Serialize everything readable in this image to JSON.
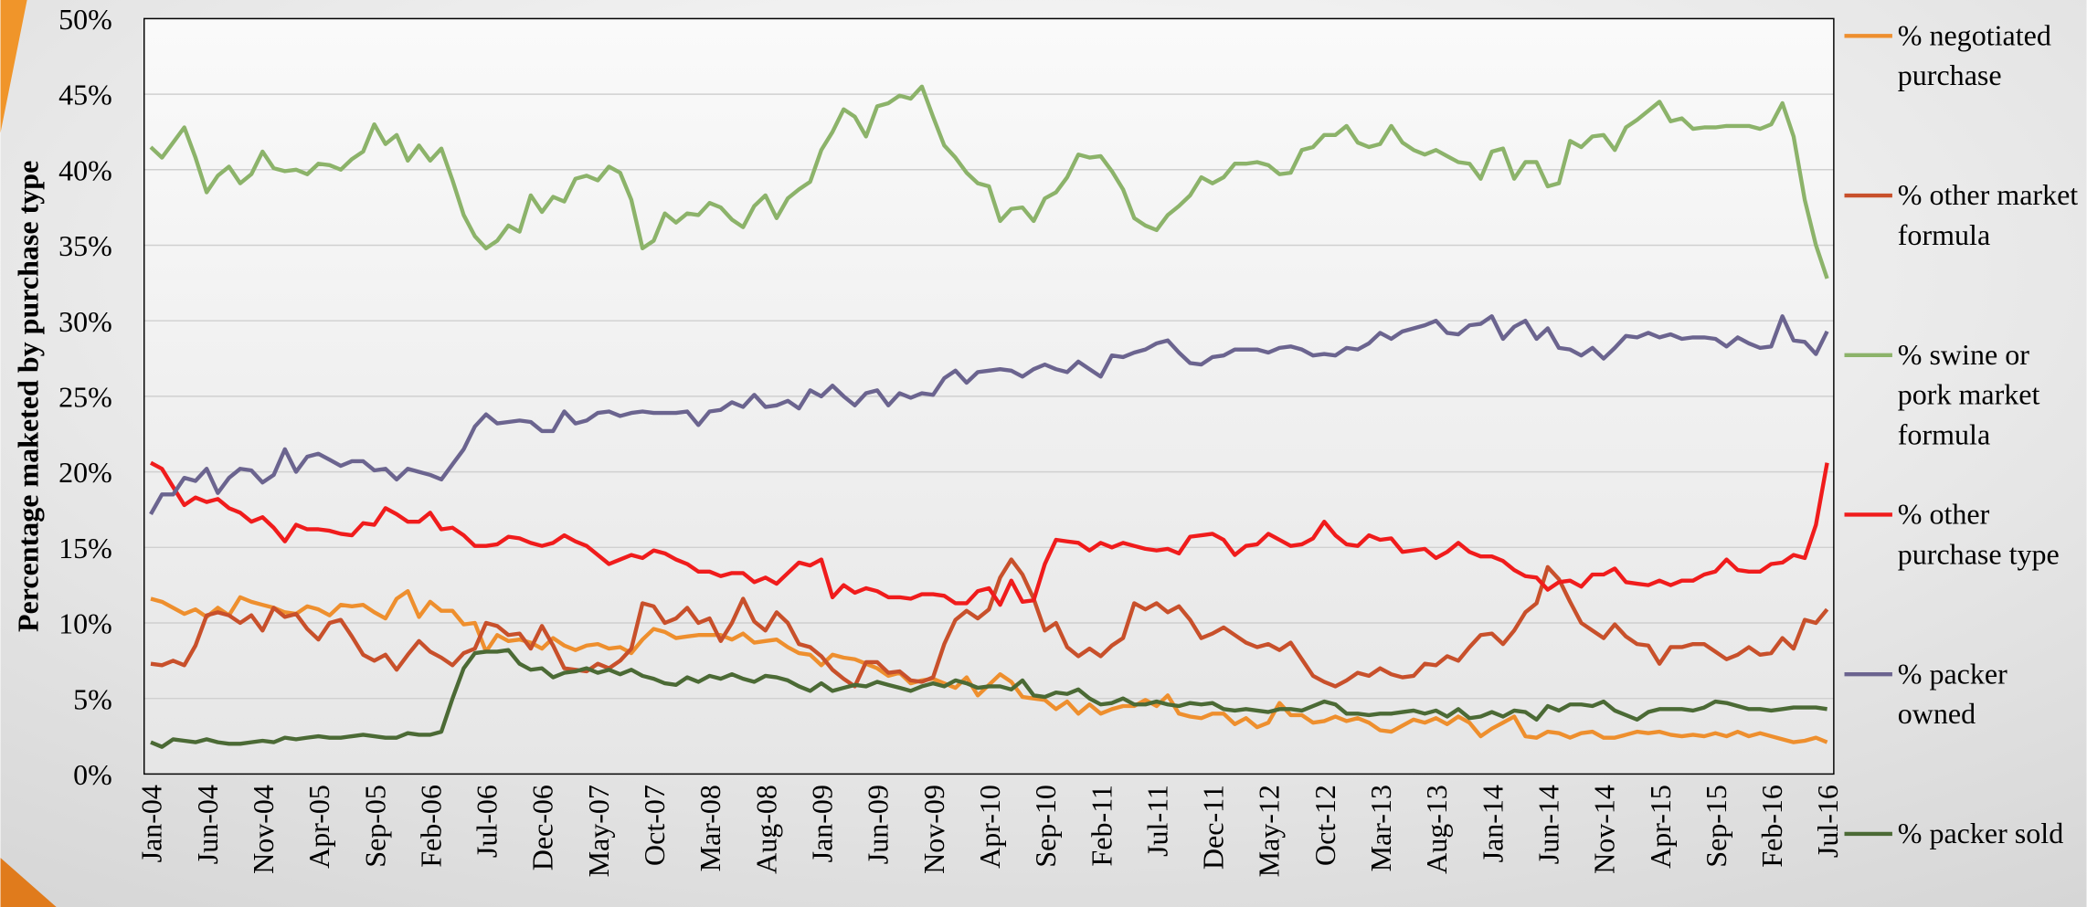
{
  "chart_data": {
    "type": "line",
    "y_label": "Percentage maketed by purchase type",
    "categories": [
      "Jan-04",
      null,
      null,
      null,
      null,
      "Jun-04",
      null,
      null,
      null,
      null,
      "Nov-04",
      null,
      null,
      null,
      null,
      "Apr-05",
      null,
      null,
      null,
      null,
      "Sep-05",
      null,
      null,
      null,
      null,
      "Feb-06",
      null,
      null,
      null,
      null,
      "Jul-06",
      null,
      null,
      null,
      null,
      "Dec-06",
      null,
      null,
      null,
      null,
      "May-07",
      null,
      null,
      null,
      null,
      "Oct-07",
      null,
      null,
      null,
      null,
      "Mar-08",
      null,
      null,
      null,
      null,
      "Aug-08",
      null,
      null,
      null,
      null,
      "Jan-09",
      null,
      null,
      null,
      null,
      "Jun-09",
      null,
      null,
      null,
      null,
      "Nov-09",
      null,
      null,
      null,
      null,
      "Apr-10",
      null,
      null,
      null,
      null,
      "Sep-10",
      null,
      null,
      null,
      null,
      "Feb-11",
      null,
      null,
      null,
      null,
      "Jul-11",
      null,
      null,
      null,
      null,
      "Dec-11",
      null,
      null,
      null,
      null,
      "May-12",
      null,
      null,
      null,
      null,
      "Oct-12",
      null,
      null,
      null,
      null,
      "Mar-13",
      null,
      null,
      null,
      null,
      "Aug-13",
      null,
      null,
      null,
      null,
      "Jan-14",
      null,
      null,
      null,
      null,
      "Jun-14",
      null,
      null,
      null,
      null,
      "Nov-14",
      null,
      null,
      null,
      null,
      "Apr-15",
      null,
      null,
      null,
      null,
      "Sep-15",
      null,
      null,
      null,
      null,
      "Feb-16",
      null,
      null,
      null,
      null,
      "Jul-16"
    ],
    "ylim": [
      0,
      50
    ],
    "yticks": [
      {
        "value": 0,
        "label": "0%"
      },
      {
        "value": 5,
        "label": "5%"
      },
      {
        "value": 10,
        "label": "10%"
      },
      {
        "value": 15,
        "label": "15%"
      },
      {
        "value": 20,
        "label": "20%"
      },
      {
        "value": 25,
        "label": "25%"
      },
      {
        "value": 30,
        "label": "30%"
      },
      {
        "value": 35,
        "label": "35%"
      },
      {
        "value": 40,
        "label": "40%"
      },
      {
        "value": 45,
        "label": "45%"
      },
      {
        "value": 50,
        "label": "50%"
      }
    ],
    "grid": true,
    "legend": "right",
    "series": [
      {
        "name": "% negotiated purchase",
        "color": "#ee8f2e",
        "values": [
          11.6,
          11.4,
          11.0,
          10.6,
          10.9,
          10.4,
          11.0,
          10.5,
          11.7,
          11.4,
          11.2,
          11.0,
          10.7,
          10.6,
          11.1,
          10.9,
          10.5,
          11.2,
          11.1,
          11.2,
          10.7,
          10.3,
          11.6,
          12.1,
          10.4,
          11.4,
          10.8,
          10.8,
          9.9,
          10.0,
          8.1,
          9.2,
          8.8,
          8.9,
          8.7,
          8.3,
          9.0,
          8.5,
          8.2,
          8.5,
          8.6,
          8.3,
          8.4,
          8.0,
          8.9,
          9.6,
          9.4,
          9.0,
          9.1,
          9.2,
          9.2,
          9.2,
          8.9,
          9.3,
          8.7,
          8.8,
          8.9,
          8.4,
          8.0,
          7.9,
          7.2,
          7.9,
          7.7,
          7.6,
          7.3,
          7.0,
          6.5,
          6.7,
          6.0,
          6.2,
          6.3,
          6.0,
          5.7,
          6.4,
          5.2,
          5.9,
          6.6,
          6.1,
          5.1,
          5.0,
          4.9,
          4.3,
          4.8,
          4.0,
          4.6,
          4.0,
          4.3,
          4.5,
          4.5,
          4.9,
          4.5,
          5.2,
          4.0,
          3.8,
          3.7,
          4.0,
          4.0,
          3.3,
          3.7,
          3.1,
          3.4,
          4.7,
          3.9,
          3.9,
          3.4,
          3.5,
          3.8,
          3.5,
          3.7,
          3.4,
          2.9,
          2.8,
          3.2,
          3.6,
          3.4,
          3.7,
          3.3,
          3.8,
          3.4,
          2.5,
          3.0,
          3.4,
          3.8,
          2.5,
          2.4,
          2.8,
          2.7,
          2.4,
          2.7,
          2.8,
          2.4,
          2.4,
          2.6,
          2.8,
          2.7,
          2.8,
          2.6,
          2.5,
          2.6,
          2.5,
          2.7,
          2.5,
          2.8,
          2.5,
          2.7,
          2.5,
          2.3,
          2.1,
          2.2,
          2.4,
          2.1
        ]
      },
      {
        "name": "% other market formula",
        "color": "#c8502b",
        "values": [
          7.3,
          7.2,
          7.5,
          7.2,
          8.5,
          10.5,
          10.7,
          10.5,
          10.0,
          10.5,
          9.5,
          11.0,
          10.4,
          10.6,
          9.6,
          8.9,
          10.0,
          10.2,
          9.1,
          7.9,
          7.5,
          7.9,
          6.9,
          7.9,
          8.8,
          8.1,
          7.7,
          7.2,
          8.0,
          8.3,
          10.0,
          9.8,
          9.2,
          9.3,
          8.3,
          9.8,
          8.5,
          7.0,
          6.9,
          6.8,
          7.3,
          7.0,
          7.5,
          8.3,
          11.3,
          11.1,
          10.0,
          10.3,
          11.0,
          10.0,
          10.3,
          8.8,
          10.0,
          11.6,
          10.1,
          9.5,
          10.7,
          10.0,
          8.6,
          8.4,
          7.8,
          6.9,
          6.3,
          5.8,
          7.4,
          7.4,
          6.7,
          6.8,
          6.2,
          6.1,
          6.4,
          8.6,
          10.2,
          10.8,
          10.3,
          10.9,
          13.0,
          14.2,
          13.2,
          11.6,
          9.5,
          10.0,
          8.4,
          7.8,
          8.3,
          7.8,
          8.5,
          9.0,
          11.3,
          10.9,
          11.3,
          10.7,
          11.1,
          10.2,
          9.0,
          9.3,
          9.7,
          9.2,
          8.7,
          8.4,
          8.6,
          8.2,
          8.7,
          7.6,
          6.5,
          6.1,
          5.8,
          6.2,
          6.7,
          6.5,
          7.0,
          6.6,
          6.4,
          6.5,
          7.3,
          7.2,
          7.8,
          7.5,
          8.4,
          9.2,
          9.3,
          8.6,
          9.5,
          10.7,
          11.3,
          13.7,
          12.9,
          11.4,
          10.0,
          9.5,
          9.0,
          9.9,
          9.1,
          8.6,
          8.5,
          7.3,
          8.4,
          8.4,
          8.6,
          8.6,
          8.1,
          7.6,
          7.9,
          8.4,
          7.9,
          8.0,
          9.0,
          8.3,
          10.2,
          10.0,
          10.9
        ]
      },
      {
        "name": "% swine or pork market formula",
        "color": "#8cb36a",
        "values": [
          41.5,
          40.8,
          41.8,
          42.8,
          40.8,
          38.5,
          39.6,
          40.2,
          39.1,
          39.7,
          41.2,
          40.1,
          39.9,
          40.0,
          39.7,
          40.4,
          40.3,
          40.0,
          40.7,
          41.2,
          43.0,
          41.7,
          42.3,
          40.6,
          41.6,
          40.6,
          41.4,
          39.3,
          37.0,
          35.6,
          34.8,
          35.3,
          36.3,
          35.9,
          38.3,
          37.2,
          38.2,
          37.9,
          39.4,
          39.6,
          39.3,
          40.2,
          39.8,
          38.0,
          34.8,
          35.3,
          37.1,
          36.5,
          37.1,
          37.0,
          37.8,
          37.5,
          36.7,
          36.2,
          37.6,
          38.3,
          36.8,
          38.1,
          38.7,
          39.2,
          41.3,
          42.5,
          44.0,
          43.5,
          42.2,
          44.2,
          44.4,
          44.9,
          44.7,
          45.5,
          43.5,
          41.6,
          40.8,
          39.8,
          39.1,
          38.9,
          36.6,
          37.4,
          37.5,
          36.6,
          38.1,
          38.5,
          39.5,
          41.0,
          40.8,
          40.9,
          39.9,
          38.7,
          36.8,
          36.3,
          36.0,
          37.0,
          37.6,
          38.3,
          39.5,
          39.1,
          39.5,
          40.4,
          40.4,
          40.5,
          40.3,
          39.7,
          39.8,
          41.3,
          41.5,
          42.3,
          42.3,
          42.9,
          41.8,
          41.5,
          41.7,
          42.9,
          41.8,
          41.3,
          41.0,
          41.3,
          40.9,
          40.5,
          40.4,
          39.4,
          41.2,
          41.4,
          39.4,
          40.5,
          40.5,
          38.9,
          39.1,
          41.9,
          41.5,
          42.2,
          42.3,
          41.3,
          42.8,
          43.3,
          43.9,
          44.5,
          43.2,
          43.4,
          42.7,
          42.8,
          42.8,
          42.9,
          42.9,
          42.9,
          42.7,
          43.0,
          44.4,
          42.2,
          38.0,
          35.0,
          32.8
        ]
      },
      {
        "name": "% other purchase type",
        "color": "#f01c1c",
        "values": [
          20.6,
          20.2,
          19.0,
          17.8,
          18.3,
          18.0,
          18.2,
          17.6,
          17.3,
          16.7,
          17.0,
          16.3,
          15.4,
          16.5,
          16.2,
          16.2,
          16.1,
          15.9,
          15.8,
          16.6,
          16.5,
          17.6,
          17.2,
          16.7,
          16.7,
          17.3,
          16.2,
          16.3,
          15.8,
          15.1,
          15.1,
          15.2,
          15.7,
          15.6,
          15.3,
          15.1,
          15.3,
          15.8,
          15.4,
          15.1,
          14.5,
          13.9,
          14.2,
          14.5,
          14.3,
          14.8,
          14.6,
          14.2,
          13.9,
          13.4,
          13.4,
          13.1,
          13.3,
          13.3,
          12.7,
          13.0,
          12.6,
          13.3,
          14.0,
          13.8,
          14.2,
          11.7,
          12.5,
          12.0,
          12.3,
          12.1,
          11.7,
          11.7,
          11.6,
          11.9,
          11.9,
          11.8,
          11.3,
          11.3,
          12.1,
          12.3,
          11.2,
          12.8,
          11.4,
          11.5,
          13.9,
          15.5,
          15.4,
          15.3,
          14.8,
          15.3,
          15.0,
          15.3,
          15.1,
          14.9,
          14.8,
          14.9,
          14.6,
          15.7,
          15.8,
          15.9,
          15.5,
          14.5,
          15.1,
          15.2,
          15.9,
          15.5,
          15.1,
          15.2,
          15.6,
          16.7,
          15.8,
          15.2,
          15.1,
          15.8,
          15.5,
          15.6,
          14.7,
          14.8,
          14.9,
          14.3,
          14.7,
          15.3,
          14.7,
          14.4,
          14.4,
          14.1,
          13.5,
          13.1,
          13.0,
          12.2,
          12.7,
          12.8,
          12.4,
          13.2,
          13.2,
          13.6,
          12.7,
          12.6,
          12.5,
          12.8,
          12.5,
          12.8,
          12.8,
          13.2,
          13.4,
          14.2,
          13.5,
          13.4,
          13.4,
          13.9,
          14.0,
          14.5,
          14.3,
          16.5,
          20.6
        ]
      },
      {
        "name": "% packer owned",
        "color": "#6b648f",
        "values": [
          17.2,
          18.5,
          18.5,
          19.6,
          19.4,
          20.2,
          18.6,
          19.6,
          20.2,
          20.1,
          19.3,
          19.8,
          21.5,
          20.0,
          21.0,
          21.2,
          20.8,
          20.4,
          20.7,
          20.7,
          20.1,
          20.2,
          19.5,
          20.2,
          20.0,
          19.8,
          19.5,
          20.5,
          21.5,
          23.0,
          23.8,
          23.2,
          23.3,
          23.4,
          23.3,
          22.7,
          22.7,
          24.0,
          23.2,
          23.4,
          23.9,
          24.0,
          23.7,
          23.9,
          24.0,
          23.9,
          23.9,
          23.9,
          24.0,
          23.1,
          24.0,
          24.1,
          24.6,
          24.3,
          25.1,
          24.3,
          24.4,
          24.7,
          24.2,
          25.4,
          25.0,
          25.7,
          25.0,
          24.4,
          25.2,
          25.4,
          24.4,
          25.2,
          24.9,
          25.2,
          25.1,
          26.2,
          26.7,
          25.9,
          26.6,
          26.7,
          26.8,
          26.7,
          26.3,
          26.8,
          27.1,
          26.8,
          26.6,
          27.3,
          26.8,
          26.3,
          27.7,
          27.6,
          27.9,
          28.1,
          28.5,
          28.7,
          27.9,
          27.2,
          27.1,
          27.6,
          27.7,
          28.1,
          28.1,
          28.1,
          27.9,
          28.2,
          28.3,
          28.1,
          27.7,
          27.8,
          27.7,
          28.2,
          28.1,
          28.5,
          29.2,
          28.8,
          29.3,
          29.5,
          29.7,
          30.0,
          29.2,
          29.1,
          29.7,
          29.8,
          30.3,
          28.8,
          29.6,
          30.0,
          28.8,
          29.5,
          28.2,
          28.1,
          27.7,
          28.2,
          27.5,
          28.2,
          29.0,
          28.9,
          29.2,
          28.9,
          29.1,
          28.8,
          28.9,
          28.9,
          28.8,
          28.3,
          28.9,
          28.5,
          28.2,
          28.3,
          30.3,
          28.7,
          28.6,
          27.8,
          29.3
        ]
      },
      {
        "name": "% packer sold",
        "color": "#4b6a35",
        "values": [
          2.1,
          1.8,
          2.3,
          2.2,
          2.1,
          2.3,
          2.1,
          2.0,
          2.0,
          2.1,
          2.2,
          2.1,
          2.4,
          2.3,
          2.4,
          2.5,
          2.4,
          2.4,
          2.5,
          2.6,
          2.5,
          2.4,
          2.4,
          2.7,
          2.6,
          2.6,
          2.8,
          5.0,
          7.0,
          8.0,
          8.1,
          8.1,
          8.2,
          7.3,
          6.9,
          7.0,
          6.4,
          6.7,
          6.8,
          7.0,
          6.7,
          6.9,
          6.6,
          6.9,
          6.5,
          6.3,
          6.0,
          5.9,
          6.4,
          6.1,
          6.5,
          6.3,
          6.6,
          6.3,
          6.1,
          6.5,
          6.4,
          6.2,
          5.8,
          5.5,
          6.0,
          5.5,
          5.7,
          5.9,
          5.8,
          6.1,
          5.9,
          5.7,
          5.5,
          5.8,
          6.0,
          5.8,
          6.2,
          6.0,
          5.7,
          5.8,
          5.8,
          5.6,
          6.2,
          5.2,
          5.1,
          5.4,
          5.3,
          5.6,
          5.0,
          4.6,
          4.7,
          5.0,
          4.6,
          4.6,
          4.8,
          4.6,
          4.5,
          4.7,
          4.6,
          4.7,
          4.3,
          4.2,
          4.3,
          4.2,
          4.1,
          4.3,
          4.3,
          4.2,
          4.5,
          4.8,
          4.6,
          4.0,
          4.0,
          3.9,
          4.0,
          4.0,
          4.1,
          4.2,
          4.0,
          4.2,
          3.8,
          4.3,
          3.7,
          3.8,
          4.1,
          3.8,
          4.2,
          4.1,
          3.6,
          4.5,
          4.2,
          4.6,
          4.6,
          4.5,
          4.8,
          4.2,
          3.9,
          3.6,
          4.1,
          4.3,
          4.3,
          4.3,
          4.2,
          4.4,
          4.8,
          4.7,
          4.5,
          4.3,
          4.3,
          4.2,
          4.3,
          4.4,
          4.4,
          4.4,
          4.3
        ]
      }
    ]
  }
}
